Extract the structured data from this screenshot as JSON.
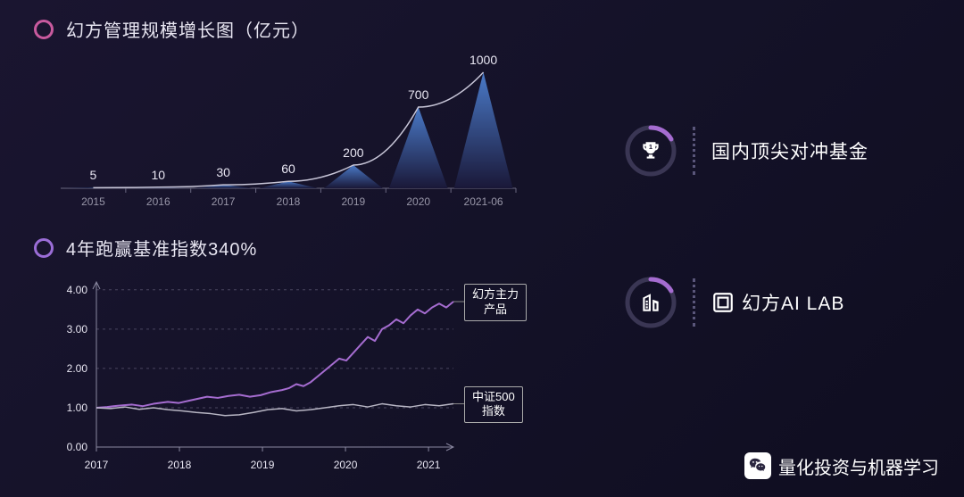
{
  "colors": {
    "bg_start": "#1a1530",
    "bg_end": "#0f0d20",
    "accent_purple": "#9b6dd7",
    "accent_pink": "#c85a9e",
    "text_light": "#e8e6f2",
    "text_muted": "#9896a8",
    "grid": "#4a4660",
    "line_purple": "#a56cd0",
    "line_gray": "#b8b6c4",
    "peak_fill_top": "#3a6ab8",
    "peak_fill_bottom": "#1a1838",
    "curve": "#c8c6d8"
  },
  "section1": {
    "title": "幻方管理规模增长图（亿元）",
    "circle_color": "#c85a9e",
    "chart": {
      "type": "peak-area",
      "categories": [
        "2015",
        "2016",
        "2017",
        "2018",
        "2019",
        "2020",
        "2021-06"
      ],
      "values": [
        5,
        10,
        30,
        60,
        200,
        700,
        1000
      ],
      "max_value": 1000,
      "label_fontsize": 14,
      "xlabel_fontsize": 12,
      "peak_gradient": [
        "#4a7ac8",
        "#1a1838"
      ],
      "curve_color": "#c8c6d8",
      "axis_color": "#6a6880"
    }
  },
  "section2": {
    "title": "4年跑赢基准指数340%",
    "circle_color": "#9b6dd7",
    "chart": {
      "type": "line",
      "yticks": [
        "0.00",
        "1.00",
        "2.00",
        "3.00",
        "4.00"
      ],
      "ylim": [
        0,
        4.2
      ],
      "xticks": [
        "2017",
        "2018",
        "2019",
        "2020",
        "2021"
      ],
      "grid_color": "#4a4660",
      "axis_color": "#8a88a0",
      "series": [
        {
          "name": "幻方主力产品",
          "label": "幻方主力\n产品",
          "color": "#a56cd0",
          "line_width": 2,
          "points": [
            [
              0.0,
              1.0
            ],
            [
              0.03,
              1.02
            ],
            [
              0.06,
              1.05
            ],
            [
              0.1,
              1.08
            ],
            [
              0.13,
              1.04
            ],
            [
              0.16,
              1.1
            ],
            [
              0.2,
              1.15
            ],
            [
              0.23,
              1.12
            ],
            [
              0.26,
              1.18
            ],
            [
              0.28,
              1.22
            ],
            [
              0.31,
              1.28
            ],
            [
              0.34,
              1.25
            ],
            [
              0.37,
              1.3
            ],
            [
              0.4,
              1.33
            ],
            [
              0.43,
              1.28
            ],
            [
              0.46,
              1.32
            ],
            [
              0.49,
              1.4
            ],
            [
              0.52,
              1.45
            ],
            [
              0.54,
              1.5
            ],
            [
              0.56,
              1.6
            ],
            [
              0.58,
              1.55
            ],
            [
              0.6,
              1.65
            ],
            [
              0.62,
              1.8
            ],
            [
              0.64,
              1.95
            ],
            [
              0.66,
              2.1
            ],
            [
              0.68,
              2.25
            ],
            [
              0.7,
              2.2
            ],
            [
              0.72,
              2.4
            ],
            [
              0.74,
              2.6
            ],
            [
              0.76,
              2.8
            ],
            [
              0.78,
              2.7
            ],
            [
              0.8,
              3.0
            ],
            [
              0.82,
              3.1
            ],
            [
              0.84,
              3.25
            ],
            [
              0.86,
              3.15
            ],
            [
              0.88,
              3.35
            ],
            [
              0.9,
              3.5
            ],
            [
              0.92,
              3.4
            ],
            [
              0.94,
              3.55
            ],
            [
              0.96,
              3.65
            ],
            [
              0.98,
              3.55
            ],
            [
              1.0,
              3.7
            ]
          ]
        },
        {
          "name": "中证500指数",
          "label": "中证500\n指数",
          "color": "#b8b6c4",
          "line_width": 1.5,
          "points": [
            [
              0.0,
              1.0
            ],
            [
              0.04,
              0.98
            ],
            [
              0.08,
              1.02
            ],
            [
              0.12,
              0.96
            ],
            [
              0.16,
              1.0
            ],
            [
              0.2,
              0.95
            ],
            [
              0.24,
              0.92
            ],
            [
              0.28,
              0.88
            ],
            [
              0.32,
              0.85
            ],
            [
              0.36,
              0.8
            ],
            [
              0.4,
              0.82
            ],
            [
              0.44,
              0.88
            ],
            [
              0.48,
              0.95
            ],
            [
              0.52,
              0.98
            ],
            [
              0.56,
              0.92
            ],
            [
              0.6,
              0.95
            ],
            [
              0.64,
              1.0
            ],
            [
              0.68,
              1.05
            ],
            [
              0.72,
              1.08
            ],
            [
              0.76,
              1.02
            ],
            [
              0.8,
              1.1
            ],
            [
              0.84,
              1.05
            ],
            [
              0.88,
              1.02
            ],
            [
              0.92,
              1.08
            ],
            [
              0.96,
              1.05
            ],
            [
              1.0,
              1.1
            ]
          ]
        }
      ]
    }
  },
  "right": {
    "badge1": {
      "text": "国内顶尖对冲基金",
      "icon": "trophy",
      "ring_color": "#a56cd0"
    },
    "badge2": {
      "text": "幻方AI LAB",
      "icon": "building",
      "ring_color": "#a56cd0"
    }
  },
  "watermark": {
    "text": "量化投资与机器学习",
    "icon": "wechat"
  }
}
